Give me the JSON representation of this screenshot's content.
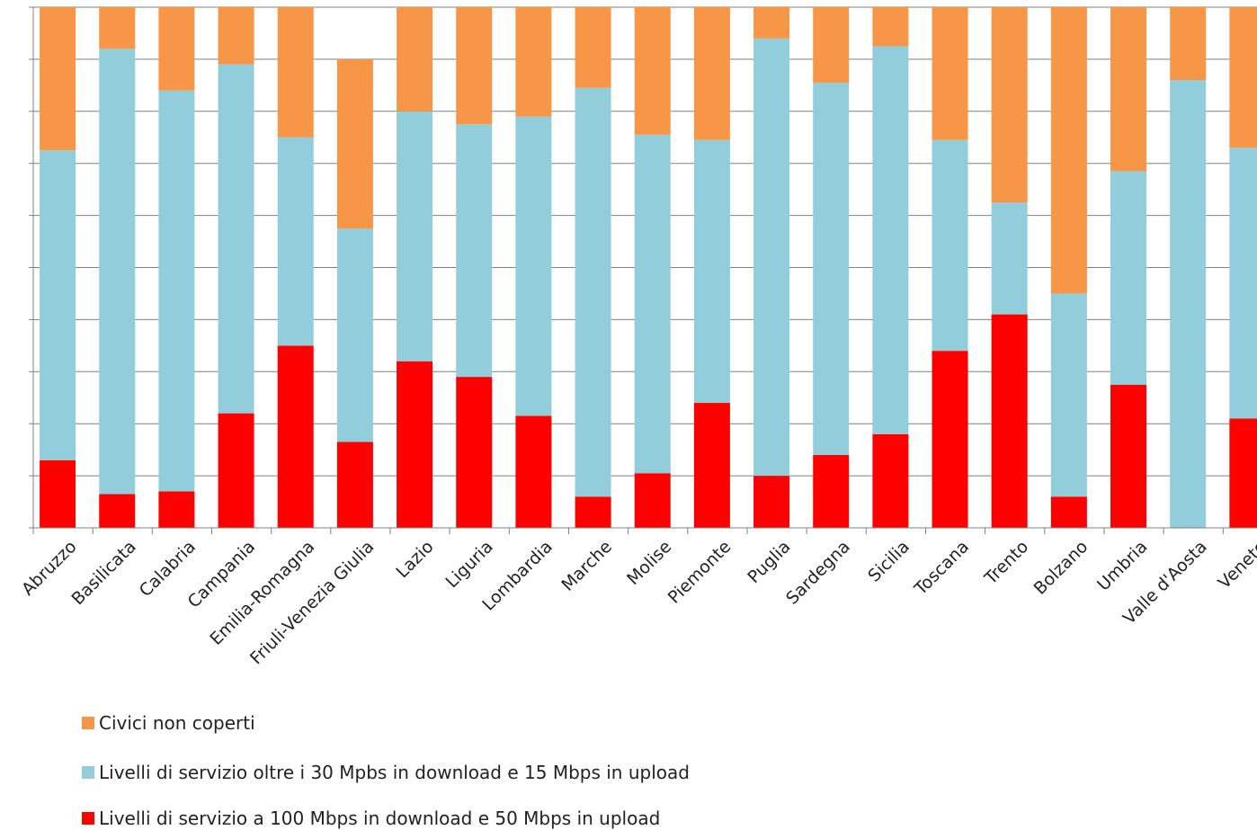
{
  "chart_data": {
    "type": "bar",
    "stacked": true,
    "percent_stacked": true,
    "categories": [
      "Abruzzo",
      "Basilicata",
      "Calabria",
      "Campania",
      "Emilia-Romagna",
      "Friuli-Venezia Giulia",
      "Lazio",
      "Liguria",
      "Lombardia",
      "Marche",
      "Molise",
      "Piemonte",
      "Puglia",
      "Sardegna",
      "Sicilia",
      "Toscana",
      "Trento",
      "Bolzano",
      "Umbria",
      "Valle d'Aosta",
      "Veneto"
    ],
    "ylim": [
      0,
      100
    ],
    "ytick_count": 10,
    "grid": true,
    "legend_position": "bottom",
    "series": [
      {
        "name": "Livelli di servizio a 100 Mbps in download e 50 Mbps in upload",
        "color": "#ff0000",
        "values": [
          13,
          6.5,
          7,
          22,
          35,
          16.5,
          32,
          29,
          21.5,
          6,
          10.5,
          24,
          10,
          14,
          18,
          34,
          41,
          6,
          27.5,
          0,
          21
        ]
      },
      {
        "name": "Livelli di servizio oltre i 30 Mpbs in download e 15 Mbps in upload",
        "color": "#92cddc",
        "values": [
          59.5,
          85.5,
          77,
          67,
          40,
          41,
          48,
          48.5,
          57.5,
          78.5,
          65,
          50.5,
          84,
          71.5,
          74.5,
          40.5,
          21.5,
          39,
          41,
          86,
          52
        ]
      },
      {
        "name": "Civici non coperti",
        "color": "#f79646",
        "values": [
          27.5,
          8,
          16,
          11,
          25,
          32.5,
          20,
          22.5,
          21,
          15.5,
          24.5,
          25.5,
          6,
          14.5,
          7.5,
          25.5,
          37.5,
          55,
          31.5,
          14,
          27
        ]
      }
    ]
  },
  "legend": {
    "items": [
      {
        "label": "Civici non coperti",
        "color": "#f79646"
      },
      {
        "label": "Livelli di servizio oltre i 30 Mpbs in download e 15 Mbps in upload",
        "color": "#92cddc"
      },
      {
        "label": "Livelli di servizio a 100 Mbps in download e 50 Mbps in upload",
        "color": "#ff0000"
      }
    ]
  }
}
